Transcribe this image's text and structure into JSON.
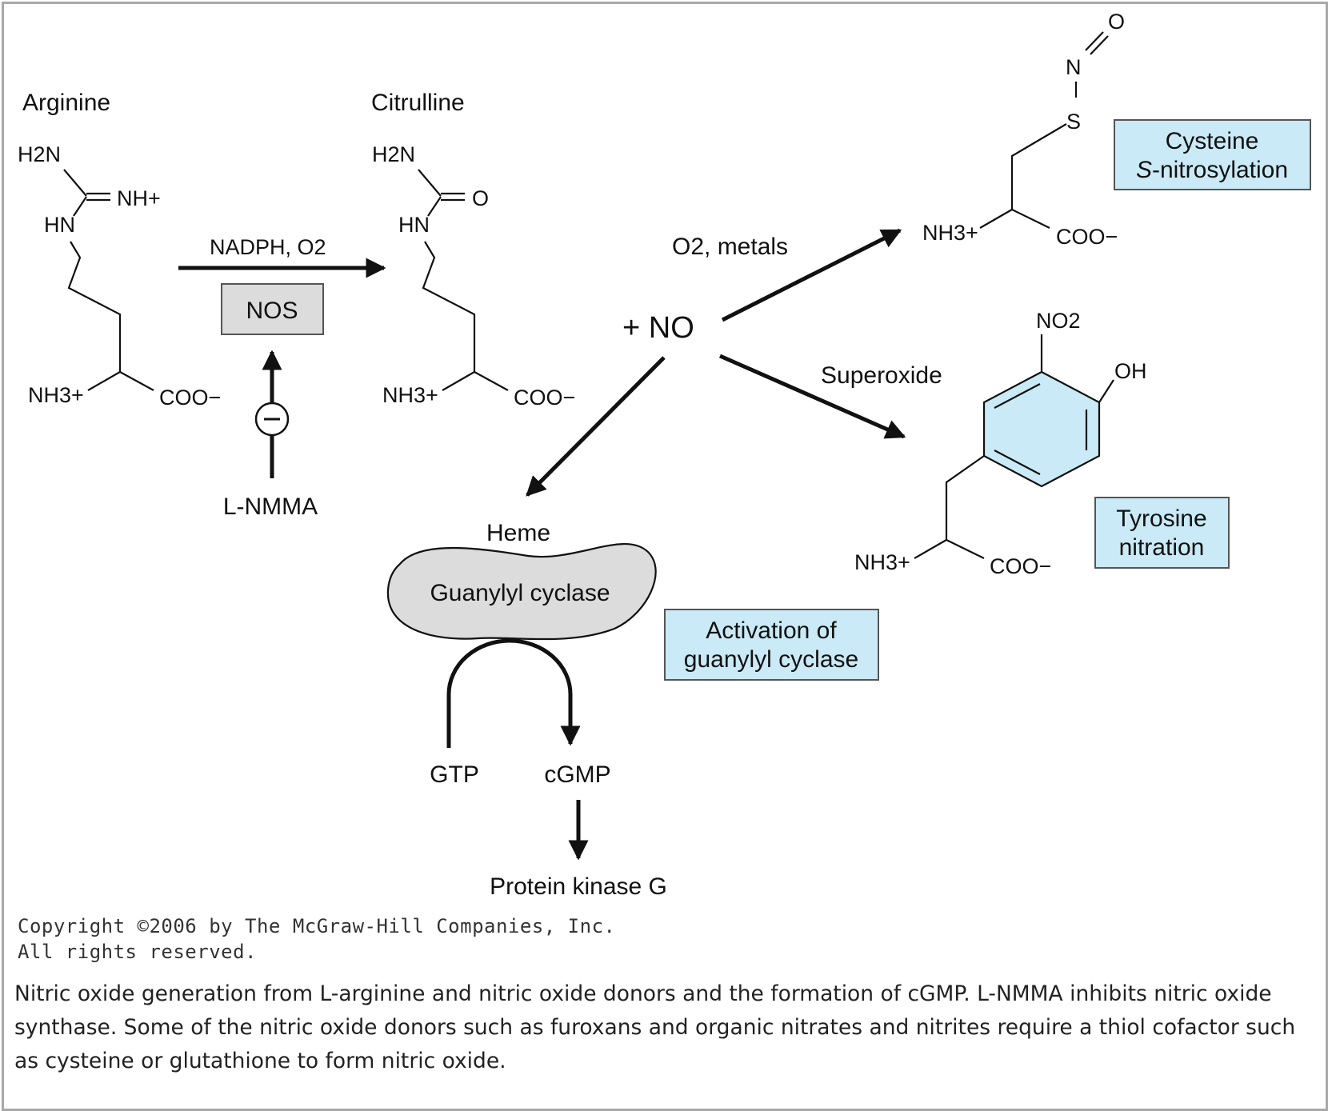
{
  "colors": {
    "highlight_box": "#c9eaf6",
    "gray_box": "#dcdcdc",
    "ink": "#111111",
    "frame_border": "#a8a8a8"
  },
  "molecules": {
    "arginine": {
      "title": "Arginine",
      "h2n": "H2N",
      "nh_plus": "NH+",
      "hn": "HN",
      "nh3": "NH3+",
      "coo": "COO−"
    },
    "citrulline": {
      "title": "Citrulline",
      "h2n": "H2N",
      "o": "O",
      "hn": "HN",
      "nh3": "NH3+",
      "coo": "COO−"
    },
    "cysteine": {
      "o": "O",
      "n": "N",
      "s": "S",
      "nh3": "NH3+",
      "coo": "COO−"
    },
    "tyrosine": {
      "no2": "NO2",
      "oh": "OH",
      "nh3": "NH3+",
      "coo": "COO−"
    }
  },
  "reaction": {
    "cofactors": "NADPH, O2",
    "enzyme": "NOS",
    "inhibitor": "L-NMMA",
    "inhibit_symbol": "−",
    "product": "+ NO"
  },
  "pathways": {
    "metals_label": "O2, metals",
    "superoxide_label": "Superoxide",
    "heme_label": "Heme",
    "cyclase_label": "Guanylyl cyclase",
    "gtp": "GTP",
    "cgmp": "cGMP",
    "pkg": "Protein kinase G"
  },
  "boxes": {
    "cysteine_line1": "Cysteine",
    "cysteine_line2_italic": "S",
    "cysteine_line2_rest": "-nitrosylation",
    "tyrosine_line1": "Tyrosine",
    "tyrosine_line2": "nitration",
    "activation_line1": "Activation of",
    "activation_line2": "guanylyl cyclase"
  },
  "copyright": {
    "line1": "Copyright ©2006 by The McGraw-Hill Companies, Inc.",
    "line2": "All rights reserved."
  },
  "caption": "Nitric oxide generation from L-arginine and nitric oxide donors and the formation of cGMP. L-NMMA inhibits nitric oxide synthase. Some of the nitric oxide donors such as furoxans and organic nitrates and nitrites require a thiol cofactor such as cysteine or glutathione to form nitric oxide."
}
